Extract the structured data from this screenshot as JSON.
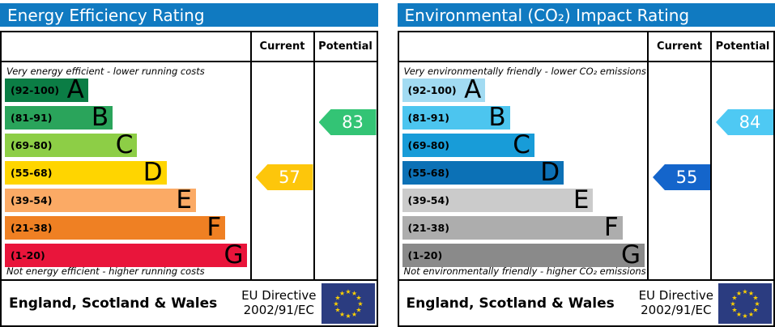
{
  "colors": {
    "header_bg": "#107ac1",
    "border": "#000000",
    "flag_bg": "#2b3c80",
    "flag_star": "#fdd100"
  },
  "panels": [
    {
      "title": "Energy Efficiency Rating",
      "columns": {
        "current": "Current",
        "potential": "Potential"
      },
      "top_caption": "Very energy efficient - lower running costs",
      "bottom_caption": "Not energy efficient - higher running costs",
      "bands": [
        {
          "range": "(92-100)",
          "letter": "A",
          "color": "#0b7d45",
          "width_pct": 34
        },
        {
          "range": "(81-91)",
          "letter": "B",
          "color": "#2aa45b",
          "width_pct": 44
        },
        {
          "range": "(69-80)",
          "letter": "C",
          "color": "#8dce46",
          "width_pct": 54
        },
        {
          "range": "(55-68)",
          "letter": "D",
          "color": "#ffd500",
          "width_pct": 66
        },
        {
          "range": "(39-54)",
          "letter": "E",
          "color": "#fbaa65",
          "width_pct": 78
        },
        {
          "range": "(21-38)",
          "letter": "F",
          "color": "#ef8023",
          "width_pct": 90
        },
        {
          "range": "(1-20)",
          "letter": "G",
          "color": "#e9153b",
          "width_pct": 99
        }
      ],
      "current": {
        "value": "57",
        "color": "#fdc60b",
        "band_index": 3
      },
      "potential": {
        "value": "83",
        "color": "#33c475",
        "band_index": 1
      },
      "footer": {
        "region": "England, Scotland & Wales",
        "directive_line1": "EU Directive",
        "directive_line2": "2002/91/EC"
      }
    },
    {
      "title": "Environmental (CO₂) Impact Rating",
      "columns": {
        "current": "Current",
        "potential": "Potential"
      },
      "top_caption": "Very environmentally friendly - lower CO₂ emissions",
      "bottom_caption": "Not environmentally friendly - higher CO₂ emissions",
      "bands": [
        {
          "range": "(92-100)",
          "letter": "A",
          "color": "#a2dbf2",
          "width_pct": 34
        },
        {
          "range": "(81-91)",
          "letter": "B",
          "color": "#4cc5ef",
          "width_pct": 44
        },
        {
          "range": "(69-80)",
          "letter": "C",
          "color": "#189cd8",
          "width_pct": 54
        },
        {
          "range": "(55-68)",
          "letter": "D",
          "color": "#0c71b6",
          "width_pct": 66
        },
        {
          "range": "(39-54)",
          "letter": "E",
          "color": "#cbcbcb",
          "width_pct": 78
        },
        {
          "range": "(21-38)",
          "letter": "F",
          "color": "#adadad",
          "width_pct": 90
        },
        {
          "range": "(1-20)",
          "letter": "G",
          "color": "#8a8a8a",
          "width_pct": 99
        }
      ],
      "current": {
        "value": "55",
        "color": "#1465cb",
        "band_index": 3
      },
      "potential": {
        "value": "84",
        "color": "#4ec9f3",
        "band_index": 1
      },
      "footer": {
        "region": "England, Scotland & Wales",
        "directive_line1": "EU Directive",
        "directive_line2": "2002/91/EC"
      }
    }
  ],
  "chart_data": [
    {
      "type": "bar",
      "title": "Energy Efficiency Rating",
      "categories": [
        "A (92-100)",
        "B (81-91)",
        "C (69-80)",
        "D (55-68)",
        "E (39-54)",
        "F (21-38)",
        "G (1-20)"
      ],
      "values": [
        34,
        44,
        54,
        66,
        78,
        90,
        99
      ],
      "values_note": "bar lengths as % of scale column (standard EPC ladder)",
      "current_rating": 57,
      "current_band": "D",
      "potential_rating": 83,
      "potential_band": "B",
      "top_label": "Very energy efficient - lower running costs",
      "bottom_label": "Not energy efficient - higher running costs",
      "region": "England, Scotland & Wales",
      "directive": "EU Directive 2002/91/EC"
    },
    {
      "type": "bar",
      "title": "Environmental (CO₂) Impact Rating",
      "categories": [
        "A (92-100)",
        "B (81-91)",
        "C (69-80)",
        "D (55-68)",
        "E (39-54)",
        "F (21-38)",
        "G (1-20)"
      ],
      "values": [
        34,
        44,
        54,
        66,
        78,
        90,
        99
      ],
      "values_note": "bar lengths as % of scale column (standard EPC ladder)",
      "current_rating": 55,
      "current_band": "D",
      "potential_rating": 84,
      "potential_band": "B",
      "top_label": "Very environmentally friendly - lower CO₂ emissions",
      "bottom_label": "Not environmentally friendly - higher CO₂ emissions",
      "region": "England, Scotland & Wales",
      "directive": "EU Directive 2002/91/EC"
    }
  ]
}
